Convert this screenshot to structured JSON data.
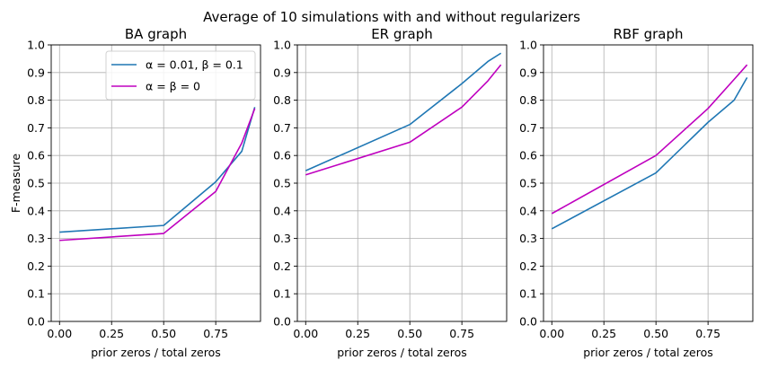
{
  "figure": {
    "suptitle": "Average of 10 simulations with and without regularizers"
  },
  "chart_data": [
    {
      "type": "line",
      "title": "BA graph",
      "xlabel": "prior zeros / total zeros",
      "ylabel": "F-measure",
      "xlim": [
        -0.04,
        0.965
      ],
      "ylim": [
        0.0,
        1.0
      ],
      "xticks": [
        "0.00",
        "0.25",
        "0.50",
        "0.75"
      ],
      "xtick_values": [
        0.0,
        0.25,
        0.5,
        0.75
      ],
      "yticks": [
        "0.0",
        "0.1",
        "0.2",
        "0.3",
        "0.4",
        "0.5",
        "0.6",
        "0.7",
        "0.8",
        "0.9",
        "1.0"
      ],
      "ytick_values": [
        0.0,
        0.1,
        0.2,
        0.3,
        0.4,
        0.5,
        0.6,
        0.7,
        0.8,
        0.9,
        1.0
      ],
      "grid": true,
      "legend": "top-right",
      "series": [
        {
          "name": "α = 0.01, β = 0.1",
          "color": "#1f77b4",
          "x": [
            0.0,
            0.5,
            0.75,
            0.875,
            0.9375
          ],
          "y": [
            0.323,
            0.347,
            0.505,
            0.615,
            0.775
          ]
        },
        {
          "name": "α = β = 0",
          "color": "#bf00bf",
          "x": [
            0.0,
            0.5,
            0.75,
            0.875,
            0.9375
          ],
          "y": [
            0.293,
            0.318,
            0.47,
            0.645,
            0.77
          ]
        }
      ]
    },
    {
      "type": "line",
      "title": "ER graph",
      "xlabel": "prior zeros / total zeros",
      "ylabel": "",
      "xlim": [
        -0.04,
        0.965
      ],
      "ylim": [
        0.0,
        1.0
      ],
      "xticks": [
        "0.00",
        "0.25",
        "0.50",
        "0.75"
      ],
      "xtick_values": [
        0.0,
        0.25,
        0.5,
        0.75
      ],
      "yticks": [
        "0.0",
        "0.1",
        "0.2",
        "0.3",
        "0.4",
        "0.5",
        "0.6",
        "0.7",
        "0.8",
        "0.9",
        "1.0"
      ],
      "ytick_values": [
        0.0,
        0.1,
        0.2,
        0.3,
        0.4,
        0.5,
        0.6,
        0.7,
        0.8,
        0.9,
        1.0
      ],
      "grid": true,
      "series": [
        {
          "color": "#1f77b4",
          "x": [
            0.0,
            0.5,
            0.75,
            0.875,
            0.9375
          ],
          "y": [
            0.545,
            0.712,
            0.86,
            0.94,
            0.97
          ]
        },
        {
          "color": "#bf00bf",
          "x": [
            0.0,
            0.5,
            0.75,
            0.875,
            0.9375
          ],
          "y": [
            0.53,
            0.648,
            0.775,
            0.87,
            0.928
          ]
        }
      ]
    },
    {
      "type": "line",
      "title": "RBF graph",
      "xlabel": "prior zeros / total zeros",
      "ylabel": "",
      "xlim": [
        -0.04,
        0.965
      ],
      "ylim": [
        0.0,
        1.0
      ],
      "xticks": [
        "0.00",
        "0.25",
        "0.50",
        "0.75"
      ],
      "xtick_values": [
        0.0,
        0.25,
        0.5,
        0.75
      ],
      "yticks": [
        "0.0",
        "0.1",
        "0.2",
        "0.3",
        "0.4",
        "0.5",
        "0.6",
        "0.7",
        "0.8",
        "0.9",
        "1.0"
      ],
      "ytick_values": [
        0.0,
        0.1,
        0.2,
        0.3,
        0.4,
        0.5,
        0.6,
        0.7,
        0.8,
        0.9,
        1.0
      ],
      "grid": true,
      "series": [
        {
          "color": "#1f77b4",
          "x": [
            0.0,
            0.5,
            0.75,
            0.875,
            0.9375
          ],
          "y": [
            0.335,
            0.537,
            0.72,
            0.8,
            0.882
          ]
        },
        {
          "color": "#bf00bf",
          "x": [
            0.0,
            0.5,
            0.75,
            0.875,
            0.9375
          ],
          "y": [
            0.39,
            0.6,
            0.77,
            0.875,
            0.928
          ]
        }
      ]
    }
  ]
}
